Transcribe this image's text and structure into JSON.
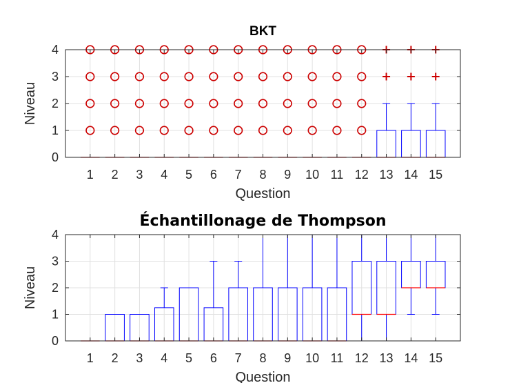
{
  "chart_data": [
    {
      "type": "box",
      "title": "BKT",
      "xlabel": "Question",
      "ylabel": "Niveau",
      "categories": [
        "1",
        "2",
        "3",
        "4",
        "5",
        "6",
        "7",
        "8",
        "9",
        "10",
        "11",
        "12",
        "13",
        "14",
        "15"
      ],
      "ylim": [
        0,
        4
      ],
      "yticks": [
        0,
        1,
        2,
        3,
        4
      ],
      "grid": true,
      "boxes": [
        {
          "q1": 0,
          "median": 0,
          "q3": 0,
          "whisker_low": 0,
          "whisker_high": 0,
          "outliers": [
            1,
            2,
            3,
            4
          ],
          "outlier_marker": "o"
        },
        {
          "q1": 0,
          "median": 0,
          "q3": 0,
          "whisker_low": 0,
          "whisker_high": 0,
          "outliers": [
            1,
            2,
            3,
            4
          ],
          "outlier_marker": "o"
        },
        {
          "q1": 0,
          "median": 0,
          "q3": 0,
          "whisker_low": 0,
          "whisker_high": 0,
          "outliers": [
            1,
            2,
            3,
            4
          ],
          "outlier_marker": "o"
        },
        {
          "q1": 0,
          "median": 0,
          "q3": 0,
          "whisker_low": 0,
          "whisker_high": 0,
          "outliers": [
            1,
            2,
            3,
            4
          ],
          "outlier_marker": "o"
        },
        {
          "q1": 0,
          "median": 0,
          "q3": 0,
          "whisker_low": 0,
          "whisker_high": 0,
          "outliers": [
            1,
            2,
            3,
            4
          ],
          "outlier_marker": "o"
        },
        {
          "q1": 0,
          "median": 0,
          "q3": 0,
          "whisker_low": 0,
          "whisker_high": 0,
          "outliers": [
            1,
            2,
            3,
            4
          ],
          "outlier_marker": "o"
        },
        {
          "q1": 0,
          "median": 0,
          "q3": 0,
          "whisker_low": 0,
          "whisker_high": 0,
          "outliers": [
            1,
            2,
            3,
            4
          ],
          "outlier_marker": "o"
        },
        {
          "q1": 0,
          "median": 0,
          "q3": 0,
          "whisker_low": 0,
          "whisker_high": 0,
          "outliers": [
            1,
            2,
            3,
            4
          ],
          "outlier_marker": "o"
        },
        {
          "q1": 0,
          "median": 0,
          "q3": 0,
          "whisker_low": 0,
          "whisker_high": 0,
          "outliers": [
            1,
            2,
            3,
            4
          ],
          "outlier_marker": "o"
        },
        {
          "q1": 0,
          "median": 0,
          "q3": 0,
          "whisker_low": 0,
          "whisker_high": 0,
          "outliers": [
            1,
            2,
            3,
            4
          ],
          "outlier_marker": "o"
        },
        {
          "q1": 0,
          "median": 0,
          "q3": 0,
          "whisker_low": 0,
          "whisker_high": 0,
          "outliers": [
            1,
            2,
            3,
            4
          ],
          "outlier_marker": "o"
        },
        {
          "q1": 0,
          "median": 0,
          "q3": 0,
          "whisker_low": 0,
          "whisker_high": 0,
          "outliers": [
            1,
            2,
            3,
            4
          ],
          "outlier_marker": "o"
        },
        {
          "q1": 0,
          "median": 0,
          "q3": 1,
          "whisker_low": 0,
          "whisker_high": 2,
          "outliers": [
            3,
            4
          ],
          "outlier_marker": "+"
        },
        {
          "q1": 0,
          "median": 0,
          "q3": 1,
          "whisker_low": 0,
          "whisker_high": 2,
          "outliers": [
            3,
            4
          ],
          "outlier_marker": "+"
        },
        {
          "q1": 0,
          "median": 0,
          "q3": 1,
          "whisker_low": 0,
          "whisker_high": 2,
          "outliers": [
            3,
            4
          ],
          "outlier_marker": "+"
        }
      ]
    },
    {
      "type": "box",
      "title": "Échantillonage de Thompson",
      "xlabel": "Question",
      "ylabel": "Niveau",
      "categories": [
        "1",
        "2",
        "3",
        "4",
        "5",
        "6",
        "7",
        "8",
        "9",
        "10",
        "11",
        "12",
        "13",
        "14",
        "15"
      ],
      "ylim": [
        0,
        4
      ],
      "yticks": [
        0,
        1,
        2,
        3,
        4
      ],
      "grid": true,
      "boxes": [
        {
          "q1": 0,
          "median": 0,
          "q3": 0,
          "whisker_low": 0,
          "whisker_high": 0,
          "outliers": []
        },
        {
          "q1": 0,
          "median": 0,
          "q3": 1,
          "whisker_low": 0,
          "whisker_high": 1,
          "outliers": []
        },
        {
          "q1": 0,
          "median": 0,
          "q3": 1,
          "whisker_low": 0,
          "whisker_high": 1,
          "outliers": []
        },
        {
          "q1": 0,
          "median": 0,
          "q3": 1.25,
          "whisker_low": 0,
          "whisker_high": 2,
          "outliers": []
        },
        {
          "q1": 0,
          "median": 0,
          "q3": 2,
          "whisker_low": 0,
          "whisker_high": 2,
          "outliers": []
        },
        {
          "q1": 0,
          "median": 0,
          "q3": 1.25,
          "whisker_low": 0,
          "whisker_high": 3,
          "outliers": []
        },
        {
          "q1": 0,
          "median": 0,
          "q3": 2,
          "whisker_low": 0,
          "whisker_high": 3,
          "outliers": []
        },
        {
          "q1": 0,
          "median": 0,
          "q3": 2,
          "whisker_low": 0,
          "whisker_high": 4,
          "outliers": []
        },
        {
          "q1": 0,
          "median": 0,
          "q3": 2,
          "whisker_low": 0,
          "whisker_high": 4,
          "outliers": []
        },
        {
          "q1": 0,
          "median": 0,
          "q3": 2,
          "whisker_low": 0,
          "whisker_high": 4,
          "outliers": []
        },
        {
          "q1": 0,
          "median": 0,
          "q3": 2,
          "whisker_low": 0,
          "whisker_high": 4,
          "outliers": []
        },
        {
          "q1": 1,
          "median": 1,
          "q3": 3,
          "whisker_low": 0,
          "whisker_high": 4,
          "outliers": []
        },
        {
          "q1": 1,
          "median": 1,
          "q3": 3,
          "whisker_low": 0,
          "whisker_high": 4,
          "outliers": []
        },
        {
          "q1": 2,
          "median": 2,
          "q3": 3,
          "whisker_low": 1,
          "whisker_high": 4,
          "outliers": []
        },
        {
          "q1": 2,
          "median": 2,
          "q3": 3,
          "whisker_low": 1,
          "whisker_high": 4,
          "outliers": []
        }
      ]
    }
  ],
  "colors": {
    "box": "#0000ff",
    "median": "#ff0000",
    "outlier": "#cc0000",
    "grid": "#e0e0e0",
    "axis": "#262626"
  }
}
